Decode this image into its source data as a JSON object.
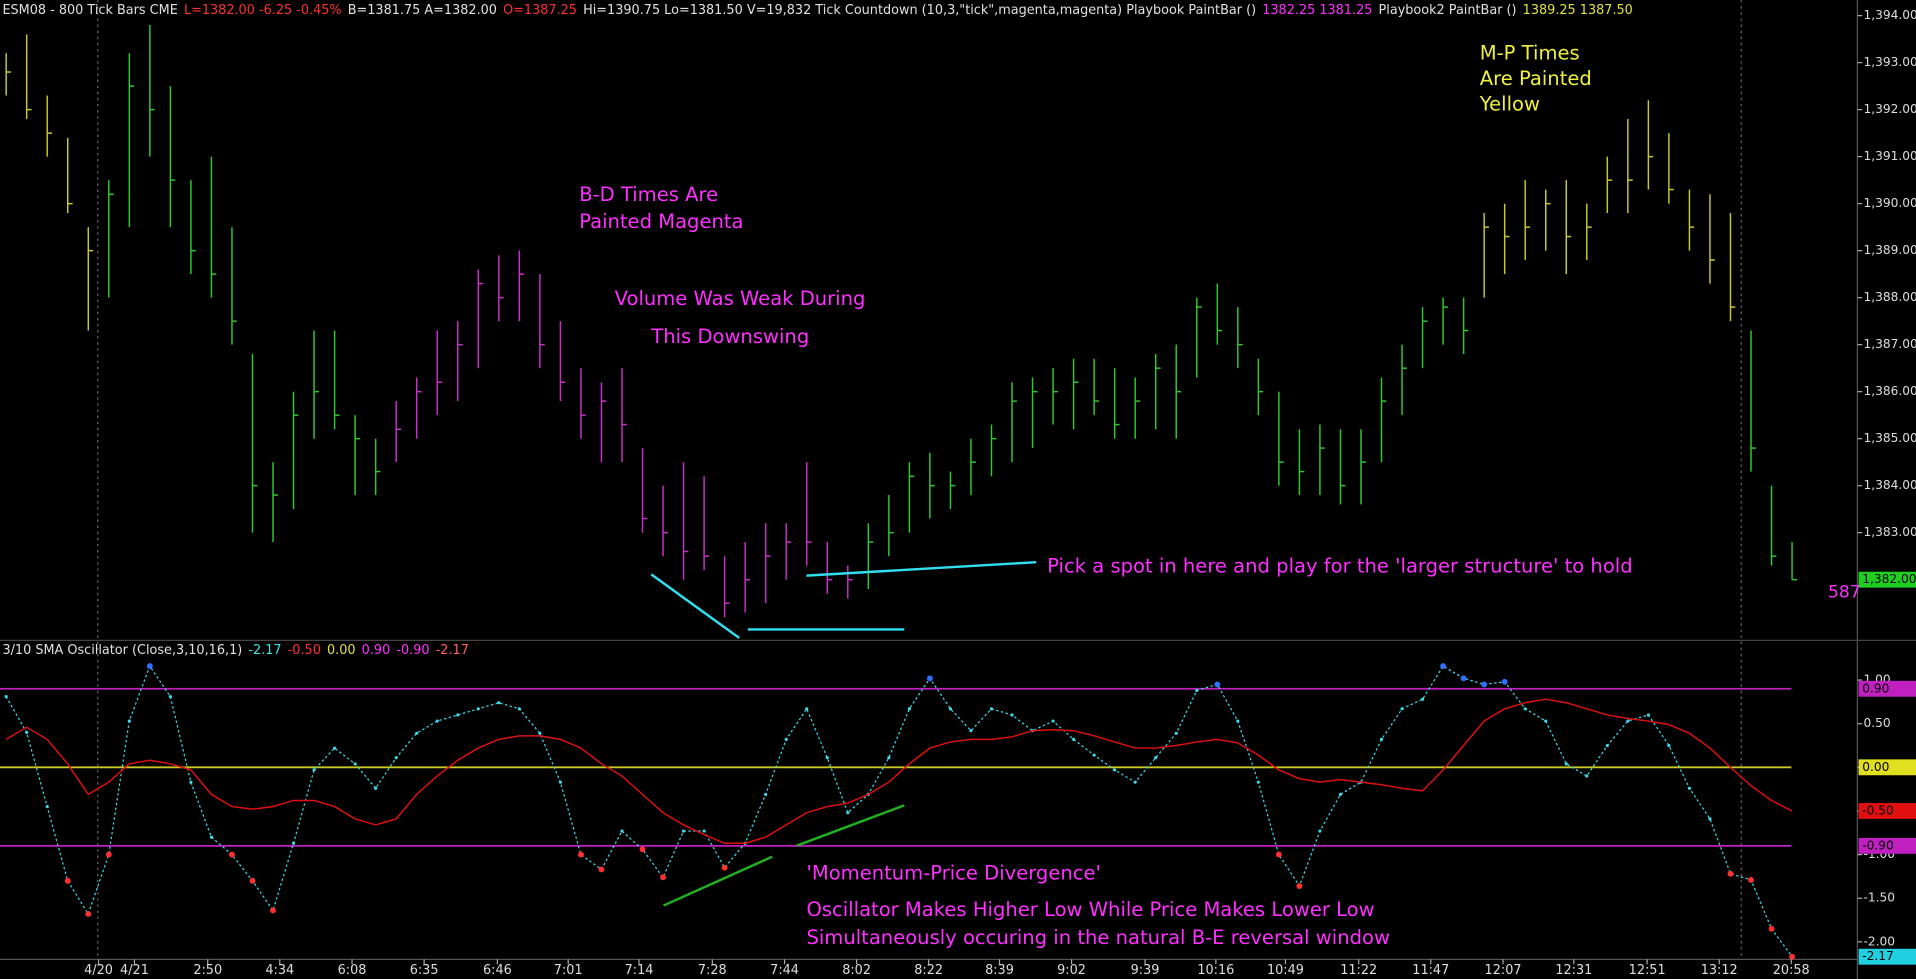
{
  "chart_data": [
    {
      "type": "ohlc",
      "header": [
        {
          "text": "ESM08 - 800 Tick Bars  CME",
          "color": "#e0e0e0"
        },
        {
          "text": "L=1382.00  -6.25  -0.45%",
          "color": "#ff3030"
        },
        {
          "text": "B=1381.75  A=1382.00",
          "color": "#e0e0e0"
        },
        {
          "text": "O=1387.25",
          "color": "#ff3030"
        },
        {
          "text": "Hi=1390.75  Lo=1381.50  V=19,832  Tick Countdown (10,3,\"tick\",magenta,magenta)  Playbook PaintBar ()",
          "color": "#e0e0e0"
        },
        {
          "text": "1382.25  1381.25",
          "color": "#ff30ff"
        },
        {
          "text": "Playbook2 PaintBar ()",
          "color": "#e0e0e0"
        },
        {
          "text": "1389.25  1387.50",
          "color": "#e0e040"
        }
      ],
      "high": [
        1393.2,
        1393.6,
        1392.3,
        1391.4,
        1389.5,
        1390.5,
        1393.2,
        1393.8,
        1392.5,
        1390.5,
        1391.0,
        1389.5,
        1386.8,
        1384.5,
        1386.0,
        1387.3,
        1387.3,
        1385.5,
        1385.0,
        1385.8,
        1386.3,
        1387.3,
        1387.5,
        1388.6,
        1388.9,
        1389.0,
        1388.5,
        1387.5,
        1386.5,
        1386.2,
        1386.5,
        1384.8,
        1384.0,
        1384.5,
        1384.2,
        1382.5,
        1382.8,
        1383.2,
        1383.2,
        1384.5,
        1382.8,
        1382.3,
        1383.2,
        1383.8,
        1384.5,
        1384.7,
        1384.3,
        1385.0,
        1385.3,
        1386.2,
        1386.3,
        1386.5,
        1386.7,
        1386.7,
        1386.5,
        1386.3,
        1386.8,
        1387.0,
        1388.0,
        1388.3,
        1387.8,
        1386.7,
        1386.0,
        1385.2,
        1385.3,
        1385.2,
        1385.2,
        1386.3,
        1387.0,
        1387.8,
        1388.0,
        1388.0,
        1389.8,
        1390.0,
        1390.5,
        1390.3,
        1390.5,
        1390.0,
        1391.0,
        1391.8,
        1392.2,
        1391.5,
        1390.3,
        1390.2,
        1389.8,
        1387.3,
        1384.0,
        1382.8
      ],
      "low": [
        1392.3,
        1391.8,
        1391.0,
        1389.8,
        1387.3,
        1388.0,
        1389.5,
        1391.0,
        1389.5,
        1388.5,
        1388.0,
        1387.0,
        1383.0,
        1382.8,
        1383.5,
        1385.0,
        1385.2,
        1383.8,
        1383.8,
        1384.5,
        1385.0,
        1385.5,
        1385.8,
        1386.5,
        1387.5,
        1387.5,
        1386.5,
        1385.8,
        1385.0,
        1384.5,
        1384.5,
        1383.0,
        1382.5,
        1382.0,
        1382.2,
        1381.2,
        1381.3,
        1381.5,
        1382.0,
        1382.3,
        1381.7,
        1381.6,
        1381.8,
        1382.5,
        1383.0,
        1383.3,
        1383.5,
        1383.8,
        1384.2,
        1384.5,
        1384.8,
        1385.3,
        1385.2,
        1385.5,
        1385.0,
        1385.0,
        1385.2,
        1385.0,
        1386.3,
        1387.0,
        1386.5,
        1385.5,
        1384.0,
        1383.8,
        1383.8,
        1383.6,
        1383.6,
        1384.5,
        1385.5,
        1386.5,
        1387.0,
        1386.8,
        1388.0,
        1388.5,
        1388.8,
        1389.0,
        1388.5,
        1388.8,
        1389.8,
        1389.8,
        1390.3,
        1390.0,
        1389.0,
        1388.3,
        1387.5,
        1384.3,
        1382.3,
        1382.0
      ],
      "close": [
        1392.8,
        1392.0,
        1391.5,
        1390.0,
        1389.0,
        1390.2,
        1392.5,
        1392.0,
        1390.5,
        1389.0,
        1388.5,
        1387.5,
        1384.0,
        1383.8,
        1385.5,
        1386.0,
        1385.5,
        1385.0,
        1384.3,
        1385.2,
        1386.0,
        1386.2,
        1387.0,
        1388.3,
        1388.0,
        1388.5,
        1387.0,
        1386.2,
        1385.5,
        1385.8,
        1385.3,
        1383.3,
        1383.0,
        1382.6,
        1382.5,
        1381.5,
        1382.0,
        1382.5,
        1382.8,
        1382.8,
        1382.0,
        1382.0,
        1382.8,
        1383.0,
        1384.2,
        1384.0,
        1384.0,
        1384.5,
        1385.0,
        1385.8,
        1386.0,
        1386.0,
        1386.2,
        1385.8,
        1385.3,
        1385.8,
        1386.5,
        1386.0,
        1387.8,
        1387.3,
        1387.0,
        1386.0,
        1384.5,
        1384.3,
        1384.8,
        1384.0,
        1384.5,
        1385.8,
        1386.5,
        1387.5,
        1387.8,
        1387.3,
        1389.5,
        1389.3,
        1389.5,
        1390.0,
        1389.3,
        1389.5,
        1390.5,
        1390.5,
        1391.0,
        1390.3,
        1389.5,
        1388.8,
        1387.8,
        1384.8,
        1382.5,
        1382.0
      ],
      "bar_colors": [
        "#c8c830",
        "#c8c830",
        "#c8c830",
        "#c8c830",
        "#c8c830",
        "#30c830",
        "#30c830",
        "#30c830",
        "#30c830",
        "#30c830",
        "#30c830",
        "#30c830",
        "#30c830",
        "#30c830",
        "#30c830",
        "#30c830",
        "#30c830",
        "#30c830",
        "#30c830",
        "#c830c8",
        "#c830c8",
        "#c830c8",
        "#c830c8",
        "#c830c8",
        "#c830c8",
        "#c830c8",
        "#c830c8",
        "#c830c8",
        "#c830c8",
        "#c830c8",
        "#c830c8",
        "#c830c8",
        "#c830c8",
        "#c830c8",
        "#c830c8",
        "#c830c8",
        "#c830c8",
        "#c830c8",
        "#c830c8",
        "#c830c8",
        "#c830c8",
        "#c830c8",
        "#30c830",
        "#30c830",
        "#30c830",
        "#30c830",
        "#30c830",
        "#30c830",
        "#30c830",
        "#30c830",
        "#30c830",
        "#30c830",
        "#30c830",
        "#30c830",
        "#30c830",
        "#30c830",
        "#30c830",
        "#30c830",
        "#30c830",
        "#30c830",
        "#30c830",
        "#30c830",
        "#30c830",
        "#30c830",
        "#30c830",
        "#30c830",
        "#30c830",
        "#30c830",
        "#30c830",
        "#30c830",
        "#30c830",
        "#30c830",
        "#c8c830",
        "#c8c830",
        "#c8c830",
        "#c8c830",
        "#c8c830",
        "#c8c830",
        "#c8c830",
        "#c8c830",
        "#c8c830",
        "#c8c830",
        "#c8c830",
        "#c8c830",
        "#c8c830",
        "#30c830",
        "#30c830",
        "#30c830"
      ],
      "xlim": [
        -0.3,
        90.18
      ],
      "ylim": [
        1380.76,
        1394.2
      ],
      "yticks": [
        {
          "value": 1383,
          "label": "1,383.00"
        },
        {
          "value": 1384,
          "label": "1,384.00"
        },
        {
          "value": 1385,
          "label": "1,385.00"
        },
        {
          "value": 1386,
          "label": "1,386.00"
        },
        {
          "value": 1387,
          "label": "1,387.00"
        },
        {
          "value": 1388,
          "label": "1,388.00"
        },
        {
          "value": 1389,
          "label": "1,389.00"
        },
        {
          "value": 1390,
          "label": "1,390.00"
        },
        {
          "value": 1391,
          "label": "1,391.00"
        },
        {
          "value": 1392,
          "label": "1,392.00"
        },
        {
          "value": 1393,
          "label": "1,393.00"
        },
        {
          "value": 1394,
          "label": "1,394.00"
        }
      ],
      "markers": [
        {
          "value": 1382,
          "label": "1,382.00",
          "color": "#20d020"
        }
      ],
      "annotations": [
        {
          "text": "B-D Times Are",
          "color": "#ff30ff"
        },
        {
          "text": "Painted Magenta",
          "color": "#ff30ff"
        },
        {
          "text": "Volume Was Weak During",
          "color": "#ff30ff"
        },
        {
          "text": "This Downswing",
          "color": "#ff30ff"
        },
        {
          "text": "M-P Times",
          "color": "#f0f040"
        },
        {
          "text": "Are Painted",
          "color": "#f0f040"
        },
        {
          "text": "Yellow",
          "color": "#f0f040"
        },
        {
          "text": "Pick a spot in here and play for the 'larger structure' to hold",
          "color": "#ff30ff"
        },
        {
          "text": "587",
          "color": "#ff30ff"
        }
      ]
    },
    {
      "type": "oscillator",
      "header": [
        {
          "text": "3/10 SMA Oscillator (Close,3,10,16,1)",
          "color": "#e0e0e0"
        },
        {
          "text": "-2.17",
          "color": "#40e0e0"
        },
        {
          "text": "-0.50",
          "color": "#ff3030"
        },
        {
          "text": "0.00",
          "color": "#e0e040"
        },
        {
          "text": "0.90",
          "color": "#ff30ff"
        },
        {
          "text": "-0.90",
          "color": "#ff30ff"
        },
        {
          "text": "-2.17",
          "color": "#ff6060"
        }
      ],
      "series": [
        {
          "color": "#40d8e8",
          "values": [
            0.81,
            0.4,
            -0.45,
            -1.3,
            -1.68,
            -1.0,
            0.53,
            1.16,
            0.81,
            -0.17,
            -0.8,
            -1.0,
            -1.3,
            -1.64,
            -0.87,
            -0.03,
            0.22,
            0.04,
            -0.24,
            0.11,
            0.39,
            0.53,
            0.6,
            0.67,
            0.74,
            0.67,
            0.39,
            -0.17,
            -1.0,
            -1.17,
            -0.73,
            -0.94,
            -1.26,
            -0.73,
            -0.73,
            -1.15,
            -0.87,
            -0.31,
            0.32,
            0.67,
            0.11,
            -0.52,
            -0.31,
            0.11,
            0.67,
            1.02,
            0.67,
            0.42,
            0.67,
            0.6,
            0.42,
            0.53,
            0.32,
            0.14,
            -0.03,
            -0.17,
            0.11,
            0.39,
            0.88,
            0.95,
            0.53,
            -0.17,
            -1.0,
            -1.36,
            -0.73,
            -0.31,
            -0.17,
            0.32,
            0.67,
            0.78,
            1.16,
            1.02,
            0.95,
            0.98,
            0.67,
            0.53,
            0.04,
            -0.1,
            0.25,
            0.53,
            0.6,
            0.25,
            -0.24,
            -0.59,
            -1.22,
            -1.29,
            -1.85,
            -2.17
          ],
          "dash": true,
          "dot_colors": {
            "above": "#3070ff",
            "below": "#ff3030"
          }
        },
        {
          "color": "#e01010",
          "values": [
            0.32,
            0.46,
            0.32,
            0.04,
            -0.31,
            -0.17,
            0.04,
            0.08,
            0.04,
            -0.03,
            -0.31,
            -0.45,
            -0.48,
            -0.45,
            -0.38,
            -0.38,
            -0.45,
            -0.59,
            -0.66,
            -0.59,
            -0.31,
            -0.1,
            0.08,
            0.22,
            0.32,
            0.36,
            0.36,
            0.32,
            0.22,
            0.04,
            -0.1,
            -0.31,
            -0.52,
            -0.66,
            -0.77,
            -0.87,
            -0.87,
            -0.8,
            -0.66,
            -0.52,
            -0.45,
            -0.41,
            -0.31,
            -0.17,
            0.04,
            0.22,
            0.29,
            0.32,
            0.32,
            0.35,
            0.42,
            0.43,
            0.42,
            0.36,
            0.29,
            0.22,
            0.22,
            0.25,
            0.29,
            0.32,
            0.28,
            0.14,
            -0.03,
            -0.13,
            -0.17,
            -0.14,
            -0.17,
            -0.2,
            -0.24,
            -0.27,
            -0.03,
            0.25,
            0.53,
            0.67,
            0.74,
            0.78,
            0.74,
            0.67,
            0.6,
            0.56,
            0.53,
            0.49,
            0.39,
            0.22,
            0,
            -0.21,
            -0.38,
            -0.5
          ],
          "dash": false
        }
      ],
      "levels": [
        {
          "value": 0.9,
          "color": "#c020c0"
        },
        {
          "value": 0,
          "color": "#c8c820"
        },
        {
          "value": -0.9,
          "color": "#c020c0"
        }
      ],
      "xlim": [
        -0.3,
        90.18
      ],
      "ylim": [
        -2.2,
        1.23
      ],
      "yticks": [
        {
          "value": 1,
          "label": "1.00"
        },
        {
          "value": 0.5,
          "label": "0.50"
        },
        {
          "value": 0,
          "label": "0.00"
        },
        {
          "value": -0.5,
          "label": "-0.50"
        },
        {
          "value": -1,
          "label": "-1.00"
        },
        {
          "value": -1.5,
          "label": "-1.50"
        },
        {
          "value": -2,
          "label": "-2.00"
        }
      ],
      "markers": [
        {
          "value": 0.9,
          "label": "0.90",
          "color": "#c020c0"
        },
        {
          "value": 0,
          "label": "0.00",
          "color": "#e0e020"
        },
        {
          "value": -0.5,
          "label": "-0.50",
          "color": "#e01010"
        },
        {
          "value": -0.9,
          "label": "-0.90",
          "color": "#c020c0"
        },
        {
          "value": -2.17,
          "label": "-2.17",
          "color": "#20d0e0"
        }
      ],
      "xticks": [
        {
          "value": 4.5,
          "label": "4/20"
        },
        {
          "value": 6.25,
          "label": "4/21"
        },
        {
          "value": 9.82,
          "label": "2:50"
        },
        {
          "value": 13.33,
          "label": "4:34"
        },
        {
          "value": 16.85,
          "label": "6:08"
        },
        {
          "value": 20.36,
          "label": "6:35"
        },
        {
          "value": 23.93,
          "label": "6:46"
        },
        {
          "value": 27.38,
          "label": "7:01"
        },
        {
          "value": 30.83,
          "label": "7:14"
        },
        {
          "value": 34.4,
          "label": "7:28"
        },
        {
          "value": 37.92,
          "label": "7:44"
        },
        {
          "value": 41.43,
          "label": "8:02"
        },
        {
          "value": 44.94,
          "label": "8:22"
        },
        {
          "value": 48.39,
          "label": "8:39"
        },
        {
          "value": 51.9,
          "label": "9:02"
        },
        {
          "value": 55.48,
          "label": "9:39"
        },
        {
          "value": 58.93,
          "label": "10:16"
        },
        {
          "value": 62.32,
          "label": "10:49"
        },
        {
          "value": 65.89,
          "label": "11:22"
        },
        {
          "value": 69.4,
          "label": "11:47"
        },
        {
          "value": 72.92,
          "label": "12:07"
        },
        {
          "value": 76.37,
          "label": "12:31"
        },
        {
          "value": 79.94,
          "label": "12:51"
        },
        {
          "value": 83.45,
          "label": "13:12"
        },
        {
          "value": 86.96,
          "label": "20:58"
        }
      ],
      "annotations": [
        {
          "text": "'Momentum-Price Divergence'",
          "color": "#ff30ff"
        },
        {
          "text": "Oscillator Makes Higher Low While Price Makes Lower Low",
          "color": "#ff30ff"
        },
        {
          "text": "Simultaneously occuring in the natural B-E reversal window",
          "color": "#ff30ff"
        }
      ]
    }
  ]
}
